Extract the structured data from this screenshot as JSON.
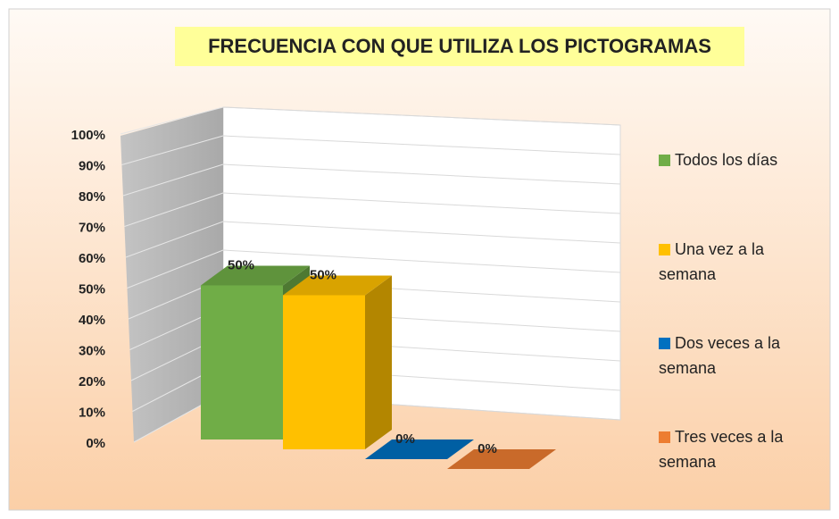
{
  "chart_data": {
    "type": "bar3d",
    "title": "FRECUENCIA CON QUE UTILIZA LOS PICTOGRAMAS",
    "categories": [
      "Todos los días",
      "Una vez a la semana",
      "Dos veces a la semana",
      "Tres veces a la semana"
    ],
    "values": [
      50,
      50,
      0,
      0
    ],
    "value_labels": [
      "50%",
      "50%",
      "0%",
      "0%"
    ],
    "colors": [
      "#70ad47",
      "#ffc000",
      "#0070c0",
      "#ed7d31"
    ],
    "ylim": [
      0,
      100
    ],
    "yticks": [
      {
        "value": 0,
        "label": "0%"
      },
      {
        "value": 10,
        "label": "10%"
      },
      {
        "value": 20,
        "label": "20%"
      },
      {
        "value": 30,
        "label": "30%"
      },
      {
        "value": 40,
        "label": "40%"
      },
      {
        "value": 50,
        "label": "50%"
      },
      {
        "value": 60,
        "label": "60%"
      },
      {
        "value": 70,
        "label": "70%"
      },
      {
        "value": 80,
        "label": "80%"
      },
      {
        "value": 90,
        "label": "90%"
      },
      {
        "value": 100,
        "label": "100%"
      }
    ],
    "grid": true,
    "legend": "right"
  }
}
